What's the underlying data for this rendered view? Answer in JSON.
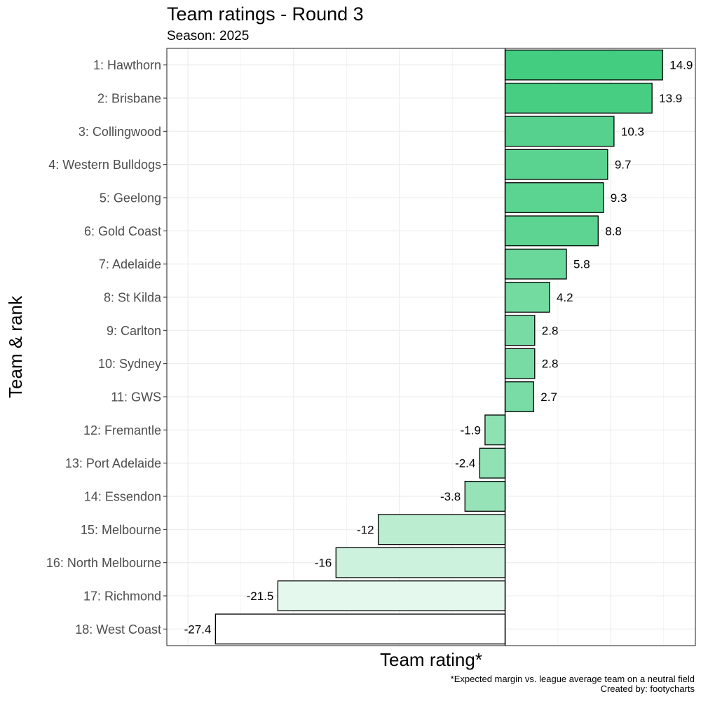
{
  "chart_data": {
    "type": "bar",
    "orientation": "horizontal",
    "title": "Team ratings - Round 3",
    "subtitle": "Season: 2025",
    "xlabel": "Team rating*",
    "ylabel": "Team & rank",
    "caption_lines": [
      "*Expected margin vs. league average team on a neutral field",
      "Created by: footycharts"
    ],
    "categories": [
      "1: Hawthorn",
      "2: Brisbane",
      "3: Collingwood",
      "4: Western Bulldogs",
      "5: Geelong",
      "6: Gold Coast",
      "7: Adelaide",
      "8: St Kilda",
      "9: Carlton",
      "10: Sydney",
      "11: GWS",
      "12: Fremantle",
      "13: Port Adelaide",
      "14: Essendon",
      "15: Melbourne",
      "16: North Melbourne",
      "17: Richmond",
      "18: West Coast"
    ],
    "values": [
      14.9,
      13.9,
      10.3,
      9.7,
      9.3,
      8.8,
      5.8,
      4.2,
      2.8,
      2.8,
      2.7,
      -1.9,
      -2.4,
      -3.8,
      -12,
      -16,
      -21.5,
      -27.4
    ],
    "value_labels": [
      "14.9",
      "13.9",
      "10.3",
      "9.7",
      "9.3",
      "8.8",
      "5.8",
      "4.2",
      "2.8",
      "2.8",
      "2.7",
      "-1.9",
      "-2.4",
      "-3.8",
      "-12",
      "-16",
      "-21.5",
      "-27.4"
    ],
    "xlim": [
      -32,
      18
    ],
    "grid": true,
    "legend": "none",
    "colors": {
      "fill_low": "#ffffff",
      "fill_high": "#43cd80",
      "bar_outline": "#000000",
      "zero_line": "#000000",
      "grid": "#ebebeb",
      "panel_border": "#333333"
    }
  }
}
